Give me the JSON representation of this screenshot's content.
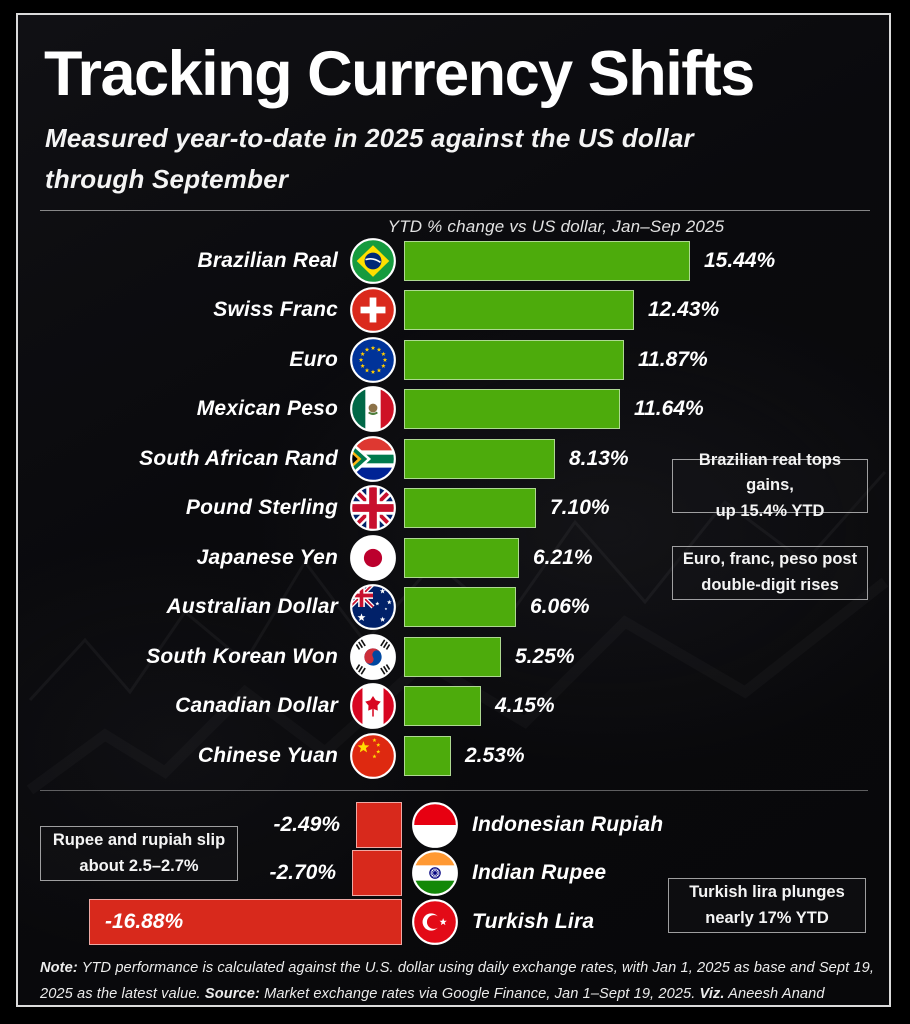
{
  "page": {
    "title": "Tracking Currency Shifts",
    "subtitle": [
      "Measured year-to-date in 2025 against the US dollar",
      "through September"
    ]
  },
  "chart_data": {
    "type": "bar",
    "orientation": "horizontal",
    "title": "YTD % change vs US dollar, Jan–Sep 2025",
    "unit": "percent YTD change vs USD",
    "xlim": [
      -16.88,
      15.44
    ],
    "positive_color": "#4dab0c",
    "negative_color": "#d8291c",
    "categories": [
      "Brazilian Real",
      "Swiss Franc",
      "Euro",
      "Mexican Peso",
      "South African Rand",
      "Pound Sterling",
      "Japanese Yen",
      "Australian Dollar",
      "South Korean Won",
      "Canadian Dollar",
      "Chinese Yuan",
      "Indonesian Rupiah",
      "Indian Rupee",
      "Turkish Lira"
    ],
    "values": [
      15.44,
      12.43,
      11.87,
      11.64,
      8.13,
      7.1,
      6.21,
      6.06,
      5.25,
      4.15,
      2.53,
      -2.49,
      -2.7,
      -16.88
    ],
    "value_labels": [
      "15.44%",
      "12.43%",
      "11.87%",
      "11.64%",
      "8.13%",
      "7.10%",
      "6.21%",
      "6.06%",
      "5.25%",
      "4.15%",
      "2.53%",
      "-2.49%",
      "-2.70%",
      "-16.88%"
    ],
    "flags": [
      "brazil",
      "switzerland",
      "eu",
      "mexico",
      "south-africa",
      "uk",
      "japan",
      "australia",
      "south-korea",
      "canada",
      "china",
      "indonesia",
      "india",
      "turkey"
    ]
  },
  "callouts": [
    {
      "lines": [
        "Brazilian real tops gains,",
        "up 15.4% YTD"
      ]
    },
    {
      "lines": [
        "Euro, franc, peso post",
        "double-digit rises"
      ]
    },
    {
      "lines": [
        "Rupee and rupiah slip",
        "about 2.5–2.7%"
      ]
    },
    {
      "lines": [
        "Turkish lira plunges",
        "nearly 17% YTD"
      ]
    }
  ],
  "footer": {
    "segments": [
      {
        "text": "Note:",
        "bold": true
      },
      {
        "text": " YTD performance is calculated against the U.S. dollar using daily exchange rates, with Jan 1, 2025 as base and Sept 19, 2025 as the latest value. "
      },
      {
        "text": "Source:",
        "bold": true
      },
      {
        "text": " Market exchange rates via Google Finance, Jan 1–Sept 19, 2025. "
      },
      {
        "text": "Viz.",
        "bold": true
      },
      {
        "text": " Aneesh Anand"
      }
    ]
  }
}
